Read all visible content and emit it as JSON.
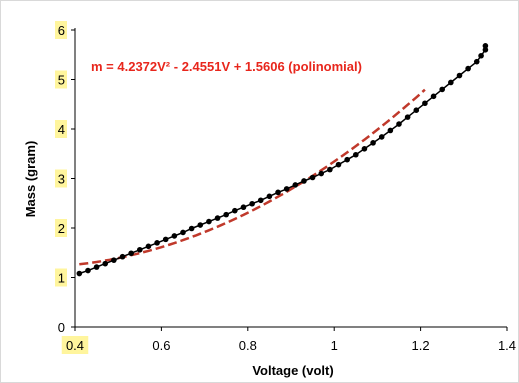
{
  "chart_data": {
    "type": "scatter",
    "title": "",
    "xlabel": "Voltage (volt)",
    "ylabel": "Mass (gram)",
    "xlim": [
      0.4,
      1.4
    ],
    "ylim": [
      0,
      6
    ],
    "x_ticks": [
      {
        "value": 0.4,
        "label": "0.4",
        "highlight": true
      },
      {
        "value": 0.6,
        "label": "0.6",
        "highlight": false
      },
      {
        "value": 0.8,
        "label": "0.8",
        "highlight": false
      },
      {
        "value": 1.0,
        "label": "1",
        "highlight": false
      },
      {
        "value": 1.2,
        "label": "1.2",
        "highlight": false
      },
      {
        "value": 1.4,
        "label": "1.4",
        "highlight": false
      }
    ],
    "y_ticks": [
      {
        "value": 0,
        "label": "0",
        "highlight": false
      },
      {
        "value": 1,
        "label": "1",
        "highlight": true
      },
      {
        "value": 2,
        "label": "2",
        "highlight": true
      },
      {
        "value": 3,
        "label": "3",
        "highlight": true
      },
      {
        "value": 4,
        "label": "4",
        "highlight": true
      },
      {
        "value": 5,
        "label": "5",
        "highlight": true
      },
      {
        "value": 6,
        "label": "6",
        "highlight": true
      }
    ],
    "grid": false,
    "legend": "none",
    "annotation": "m = 4.2372V² - 2.4551V + 1.5606 (polinomial)",
    "fit": {
      "model": "polynomial",
      "coefficients": [
        4.2372,
        -2.4551,
        1.5606
      ],
      "x_range": [
        0.41,
        1.21
      ]
    },
    "series": [
      {
        "points": [
          [
            0.41,
            1.08
          ],
          [
            0.43,
            1.14
          ],
          [
            0.45,
            1.21
          ],
          [
            0.47,
            1.28
          ],
          [
            0.49,
            1.35
          ],
          [
            0.51,
            1.42
          ],
          [
            0.53,
            1.49
          ],
          [
            0.55,
            1.56
          ],
          [
            0.57,
            1.63
          ],
          [
            0.59,
            1.7
          ],
          [
            0.61,
            1.77
          ],
          [
            0.63,
            1.84
          ],
          [
            0.65,
            1.91
          ],
          [
            0.67,
            1.99
          ],
          [
            0.69,
            2.06
          ],
          [
            0.71,
            2.13
          ],
          [
            0.73,
            2.2
          ],
          [
            0.75,
            2.27
          ],
          [
            0.77,
            2.35
          ],
          [
            0.79,
            2.42
          ],
          [
            0.81,
            2.49
          ],
          [
            0.83,
            2.56
          ],
          [
            0.85,
            2.64
          ],
          [
            0.87,
            2.72
          ],
          [
            0.89,
            2.79
          ],
          [
            0.91,
            2.87
          ],
          [
            0.93,
            2.95
          ],
          [
            0.95,
            3.02
          ],
          [
            0.97,
            3.1
          ],
          [
            0.99,
            3.18
          ],
          [
            1.01,
            3.28
          ],
          [
            1.03,
            3.38
          ],
          [
            1.05,
            3.48
          ],
          [
            1.07,
            3.6
          ],
          [
            1.09,
            3.72
          ],
          [
            1.11,
            3.84
          ],
          [
            1.13,
            3.97
          ],
          [
            1.15,
            4.1
          ],
          [
            1.17,
            4.24
          ],
          [
            1.19,
            4.38
          ],
          [
            1.21,
            4.52
          ],
          [
            1.23,
            4.66
          ],
          [
            1.25,
            4.8
          ],
          [
            1.27,
            4.94
          ],
          [
            1.29,
            5.08
          ],
          [
            1.31,
            5.22
          ],
          [
            1.33,
            5.36
          ],
          [
            1.34,
            5.48
          ],
          [
            1.35,
            5.6
          ],
          [
            1.35,
            5.68
          ]
        ]
      }
    ],
    "colors": {
      "markers": "#000000",
      "fit_line": "#c0392b",
      "annotation": "#e8261c",
      "tick_highlight": "#fff59d"
    }
  }
}
